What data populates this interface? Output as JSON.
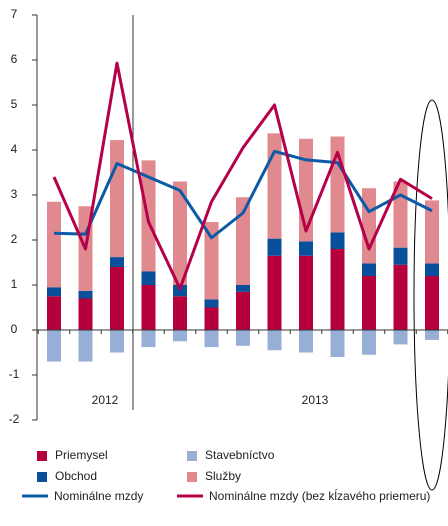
{
  "chart_data": {
    "type": "bar",
    "categories": [
      null,
      null,
      null,
      null,
      null,
      null,
      null,
      null,
      null,
      null,
      null,
      null,
      null
    ],
    "group_labels": [
      "2012",
      "2013"
    ],
    "series": [
      {
        "name": "Priemysel",
        "color": "#b5003c",
        "values": [
          0.75,
          0.7,
          1.4,
          1.0,
          0.75,
          0.5,
          0.85,
          1.65,
          1.65,
          1.8,
          1.2,
          1.45,
          1.2
        ]
      },
      {
        "name": "Obchod",
        "color": "#0a4f9c",
        "values": [
          0.2,
          0.17,
          0.22,
          0.3,
          0.25,
          0.18,
          0.15,
          0.38,
          0.32,
          0.37,
          0.28,
          0.38,
          0.28
        ]
      },
      {
        "name": "Stavebníctvo",
        "color": "#97aed6",
        "values": [
          -0.7,
          -0.7,
          -0.5,
          -0.38,
          -0.25,
          -0.38,
          -0.35,
          -0.45,
          -0.5,
          -0.6,
          -0.55,
          -0.32,
          -0.22
        ]
      },
      {
        "name": "Služby",
        "color": "#e0898f",
        "values": [
          1.9,
          1.88,
          2.6,
          2.47,
          2.3,
          1.72,
          1.95,
          2.34,
          2.28,
          2.13,
          1.67,
          1.47,
          1.4
        ]
      },
      {
        "name": "Nominálne mzdy",
        "type": "line",
        "color": "#0b5aa8",
        "values": [
          2.15,
          2.13,
          3.7,
          3.4,
          3.1,
          2.05,
          2.6,
          3.97,
          3.78,
          3.72,
          2.63,
          3.0,
          2.65
        ]
      },
      {
        "name": "Nominálne mzdy (bez kĺzavého priemeru)",
        "type": "line",
        "color": "#b5004a",
        "values": [
          3.4,
          1.8,
          5.93,
          2.4,
          0.92,
          2.85,
          4.05,
          5.0,
          2.2,
          3.95,
          1.8,
          3.35,
          2.92
        ]
      }
    ],
    "ylim": [
      -2,
      7
    ],
    "yticks": [
      -2,
      -1,
      0,
      1,
      2,
      3,
      4,
      5,
      6,
      7
    ]
  }
}
